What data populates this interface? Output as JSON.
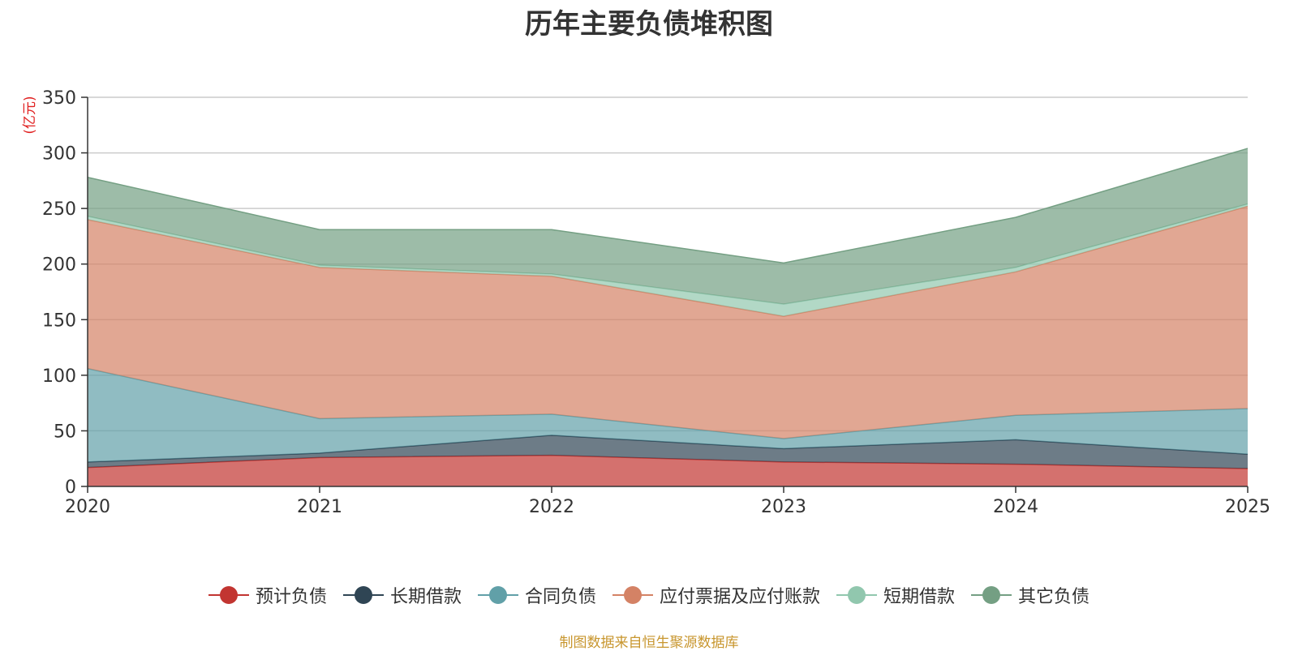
{
  "chart_data": {
    "type": "area",
    "stacked": true,
    "title": "历年主要负债堆积图",
    "unit_label": "(亿元)",
    "categories": [
      "2020",
      "2021",
      "2022",
      "2023",
      "2024",
      "2025"
    ],
    "ylim": [
      0,
      350
    ],
    "yticks": [
      0,
      50,
      100,
      150,
      200,
      250,
      300,
      350
    ],
    "grid": true,
    "legend_position": "bottom",
    "series": [
      {
        "name": "预计负债",
        "color": "#c23531",
        "values": [
          17,
          26,
          28,
          22,
          20,
          16
        ]
      },
      {
        "name": "长期借款",
        "color": "#2f4554",
        "values": [
          5,
          4,
          18,
          12,
          22,
          13
        ]
      },
      {
        "name": "合同负债",
        "color": "#61a0a8",
        "values": [
          84,
          31,
          19,
          9,
          22,
          41
        ]
      },
      {
        "name": "应付票据及应付账款",
        "color": "#d48265",
        "values": [
          134,
          136,
          124,
          110,
          129,
          182
        ]
      },
      {
        "name": "短期借款",
        "color": "#91c7ae",
        "values": [
          3,
          2,
          2,
          11,
          4,
          2
        ]
      },
      {
        "name": "其它负债",
        "color": "#749f83",
        "values": [
          35,
          32,
          40,
          37,
          45,
          50
        ]
      }
    ],
    "source": "制图数据来自恒生聚源数据库"
  }
}
